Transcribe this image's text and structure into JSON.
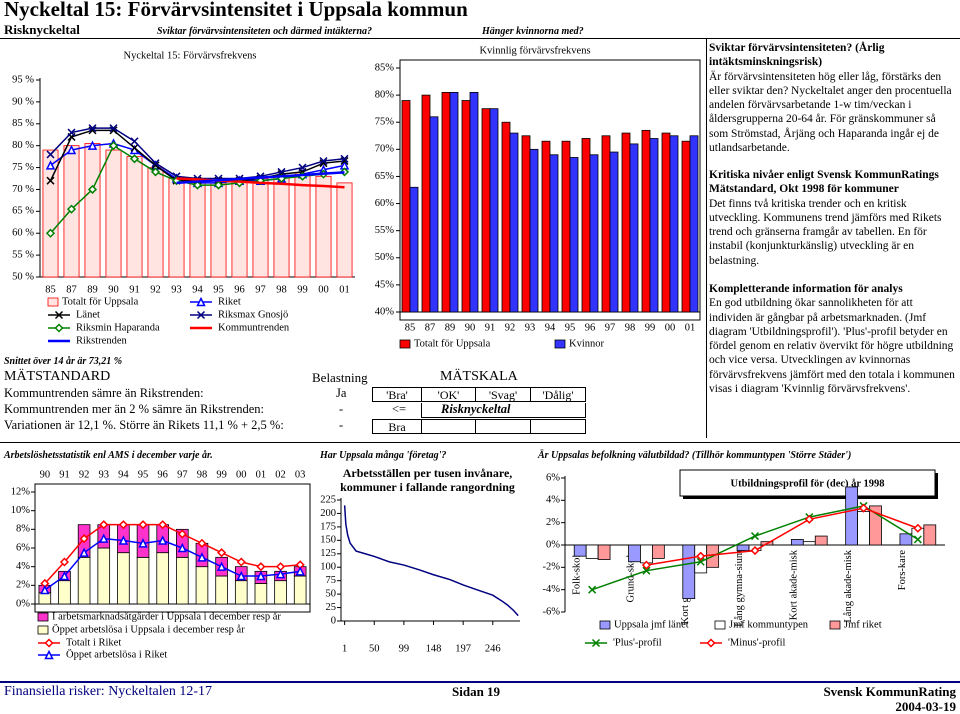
{
  "header": {
    "title": "Nyckeltal 15: Förvärvsintensitet i Uppsala kommun",
    "label": "Risknyckeltal",
    "questions": [
      "Sviktar förvärvsintensiteten och därmed intäkterna?",
      "Hänger kvinnorna med?"
    ]
  },
  "text": [
    {
      "heading": "Sviktar förvärvsintensiteten? (Årlig intäktsminskningsrisk)",
      "body": "Är förvärvsintensiteten hög eller låg, förstärks den eller sviktar den? Nyckeltalet anger den procentuella andelen förvärvsarbetande 1-w tim/veckan i åldersgrupperna 20-64 år. För gränskommuner så som Strömstad, Årjäng och Haparanda ingår ej de utlandsarbetande."
    },
    {
      "heading": "Kritiska nivåer enligt Svensk KommunRatings Mätstandard, Okt 1998 för kommuner",
      "body": "Det finns två kritiska trender och en kritisk utveckling. Kommunens trend jämförs med Rikets trend och gränserna framgår av tabellen. En för instabil (konjunkturkänslig) utveckling är en belastning."
    },
    {
      "heading": "Kompletterande information för analys",
      "body": "En god utbildning ökar sannolikheten för att individen är gångbar på arbetsmarknaden. (Jmf diagram 'Utbildningsprofil'). 'Plus'-profil betyder en fördel genom en relativ övervikt för högre utbildning och vice versa. Utvecklingen av kvinnornas förvärvsfrekvens jämfört med den totala i kommunen visas i diagram 'Kvinnlig förvärvsfrekvens'."
    }
  ],
  "table": {
    "note": "Snittet över 14 år är 73,21 %",
    "headers": [
      "MÄTSTANDARD",
      "Belastning",
      "MÄTSKALA"
    ],
    "rows": [
      [
        "Kommuntrenden sämre än Rikstrenden:",
        "Ja",
        "'Bra'",
        "'OK'",
        "'Svag'",
        "'Dålig'"
      ],
      [
        "Kommuntrenden mer än 2 % sämre än Rikstrenden:",
        "-",
        "<=",
        "Risknyckeltal"
      ],
      [
        "Variationen är 12,1 %. Större än Rikets 11,1 % + 2,5 %:",
        "-",
        "Bra"
      ]
    ]
  },
  "bottom_questions": [
    "Arbetslöshetsstatistik enl AMS i december varje år.",
    "Har Uppsala många 'företag'?",
    "Är Uppsalas befolkning välutbildad? (Tillhör kommuntypen 'Större Städer')"
  ],
  "footer": {
    "left": "Finansiella risker: Nyckeltalen 12-17",
    "page": "Sidan 19",
    "company": "Svensk KommunRating",
    "date": "2004-03-19"
  },
  "chart_data": [
    {
      "type": "bar",
      "title": "Nyckeltal 15: Förvärvsfrekvens",
      "categories": [
        "85",
        "87",
        "89",
        "90",
        "91",
        "92",
        "93",
        "94",
        "95",
        "96",
        "97",
        "98",
        "99",
        "00",
        "01"
      ],
      "ylim": [
        50,
        95
      ],
      "yticks": [
        {
          "value": 50,
          "label": "50 %"
        },
        {
          "value": 55,
          "label": "55 %"
        },
        {
          "value": 60,
          "label": "60 %"
        },
        {
          "value": 65,
          "label": "65 %"
        },
        {
          "value": 70,
          "label": "70 %"
        },
        {
          "value": 75,
          "label": "75 %"
        },
        {
          "value": 80,
          "label": "80 %"
        },
        {
          "value": 85,
          "label": "85 %"
        },
        {
          "value": 90,
          "label": "90 %"
        },
        {
          "value": 95,
          "label": "95 %"
        }
      ],
      "grid": false,
      "series": [
        {
          "name": "Totalt för Uppsala",
          "kind": "bar",
          "color": "#ff0000",
          "fill": "#ffe4e1",
          "values": [
            79,
            80,
            80.5,
            79,
            77.5,
            75,
            72.5,
            71.5,
            71.5,
            72,
            72.5,
            73,
            73.5,
            73,
            71.5
          ]
        },
        {
          "name": "Riket",
          "kind": "line",
          "marker": "triangle",
          "color": "#0000ff",
          "values": [
            75.5,
            79,
            80,
            80.5,
            79,
            75.5,
            72.5,
            71.5,
            71.5,
            72,
            72,
            72.5,
            73.5,
            74.5,
            75.5
          ]
        },
        {
          "name": "Länet",
          "kind": "line",
          "marker": "x",
          "color": "#000000",
          "values": [
            72,
            82,
            83.5,
            83.5,
            79.5,
            75.5,
            72,
            72,
            72,
            72,
            72.5,
            73.5,
            74,
            76,
            76.5
          ]
        },
        {
          "name": "Riksmax Gnosjö",
          "kind": "line",
          "marker": "x",
          "color": "#000080",
          "values": [
            78,
            83,
            84,
            84,
            81,
            76,
            73,
            72.5,
            72.5,
            72.5,
            73,
            74,
            75,
            76.5,
            77
          ]
        },
        {
          "name": "Riksmin Haparanda",
          "kind": "line",
          "marker": "diamond",
          "color": "#008000",
          "values": [
            60,
            65.5,
            70,
            80,
            77,
            74,
            72,
            71,
            71,
            71.5,
            72,
            72.5,
            73,
            73.5,
            74
          ]
        },
        {
          "name": "Kommuntrenden",
          "kind": "line",
          "width": 2.5,
          "color": "#ff0000",
          "values": [
            null,
            null,
            null,
            null,
            null,
            null,
            72.5,
            72.3,
            72,
            71.8,
            71.5,
            71.3,
            71,
            70.8,
            70.5
          ]
        },
        {
          "name": "Rikstrenden",
          "kind": "line",
          "width": 2.5,
          "color": "#0000ff",
          "values": [
            null,
            null,
            null,
            null,
            null,
            null,
            71.5,
            71.8,
            72.1,
            72.4,
            72.7,
            73,
            73.3,
            73.6,
            73.9
          ]
        }
      ]
    },
    {
      "type": "bar",
      "title": "Kvinnlig förvärvsfrekvens",
      "categories": [
        "85",
        "87",
        "89",
        "90",
        "91",
        "92",
        "93",
        "94",
        "95",
        "96",
        "97",
        "98",
        "99",
        "00",
        "01"
      ],
      "ylim": [
        40,
        85
      ],
      "yticks": [
        {
          "value": 40,
          "label": "40%"
        },
        {
          "value": 45,
          "label": "45%"
        },
        {
          "value": 50,
          "label": "50%"
        },
        {
          "value": 55,
          "label": "55%"
        },
        {
          "value": 60,
          "label": "60%"
        },
        {
          "value": 65,
          "label": "65%"
        },
        {
          "value": 70,
          "label": "70%"
        },
        {
          "value": 75,
          "label": "75%"
        },
        {
          "value": 80,
          "label": "80%"
        },
        {
          "value": 85,
          "label": "85%"
        }
      ],
      "grid": false,
      "series": [
        {
          "name": "Totalt för Uppsala",
          "kind": "bar",
          "color": "#000000",
          "fill": "#ff0000",
          "values": [
            79,
            80,
            80.5,
            79,
            77.5,
            75,
            72.5,
            71.5,
            71.5,
            72,
            72.5,
            73,
            73.5,
            73,
            71.5
          ]
        },
        {
          "name": "Kvinnor",
          "kind": "bar",
          "color": "#000000",
          "fill": "#3333ff",
          "values": [
            63,
            76,
            80.5,
            80.5,
            77.5,
            73,
            70,
            69,
            68.5,
            69,
            69.5,
            71,
            72,
            72.5,
            72.5
          ]
        }
      ]
    },
    {
      "type": "bar",
      "stacked": true,
      "categories": [
        "90",
        "91",
        "92",
        "93",
        "94",
        "95",
        "96",
        "97",
        "98",
        "99",
        "00",
        "01",
        "02",
        "03"
      ],
      "ylim": [
        0,
        12
      ],
      "yticks": [
        {
          "value": 0,
          "label": "0%"
        },
        {
          "value": 2,
          "label": "2%"
        },
        {
          "value": 4,
          "label": "4%"
        },
        {
          "value": 6,
          "label": "6%"
        },
        {
          "value": 8,
          "label": "8%"
        },
        {
          "value": 10,
          "label": "10%"
        },
        {
          "value": 12,
          "label": "12%"
        }
      ],
      "grid": false,
      "series": [
        {
          "name": "I arbetsmarknadsåtgärder i Uppsala i december resp år",
          "kind": "bar",
          "color": "#000000",
          "fill": "#ff33cc",
          "values": [
            0.8,
            1,
            3.5,
            2.5,
            3,
            3.5,
            3,
            3,
            2.5,
            2,
            1.5,
            1.3,
            1,
            1
          ]
        },
        {
          "name": "Öppet arbetslösa i Uppsala i december resp år",
          "kind": "bar",
          "color": "#000000",
          "fill": "#ffffcc",
          "values": [
            1.2,
            2.5,
            5,
            6,
            5.5,
            5,
            5.5,
            5,
            4,
            3,
            2.5,
            2.2,
            2.5,
            3
          ]
        },
        {
          "name": "Totalt i Riket",
          "kind": "line",
          "marker": "diamond",
          "color": "#ff0000",
          "values": [
            2.2,
            4.5,
            7,
            8.5,
            8.5,
            8.5,
            8.5,
            7.5,
            6.5,
            5.5,
            4.5,
            4,
            4,
            4.2
          ]
        },
        {
          "name": "Öppet arbetslösa i Riket",
          "kind": "line",
          "marker": "triangle",
          "color": "#0000ff",
          "values": [
            1.5,
            3,
            5.5,
            7,
            6.8,
            6.5,
            6.8,
            6,
            5,
            4,
            3,
            3,
            3.2,
            3.5
          ]
        }
      ]
    },
    {
      "type": "line",
      "title": "Arbetsställen per tusen invånare, kommuner i fallande rangordning",
      "x": [
        1,
        3,
        6,
        10,
        20,
        35,
        50,
        75,
        99,
        125,
        148,
        175,
        197,
        220,
        246,
        260,
        270,
        280,
        288
      ],
      "xlim": [
        -5,
        291
      ],
      "xticks": [
        1,
        50,
        99,
        148,
        197,
        246
      ],
      "ylim": [
        0,
        225
      ],
      "yticks": [
        0,
        25,
        50,
        75,
        100,
        125,
        150,
        175,
        200,
        225
      ],
      "series": [
        {
          "color": "#000080",
          "values": [
            215,
            180,
            160,
            145,
            130,
            125,
            120,
            110,
            104,
            95,
            86,
            77,
            67,
            58,
            48,
            38,
            30,
            20,
            10
          ]
        }
      ]
    },
    {
      "type": "bar",
      "title": "Utbildningsprofil för (dec) år 1998",
      "categories": [
        "Folk-skola",
        "Grund-skola",
        "Kort gymna-sium",
        "Lång gymna-sium",
        "Kort akade-misk",
        "Lång akade-misk",
        "Fors-kare"
      ],
      "ylim": [
        -6,
        6
      ],
      "yticks": [
        {
          "value": -6,
          "label": "-6%"
        },
        {
          "value": -4,
          "label": "-4%"
        },
        {
          "value": -2,
          "label": "-2%"
        },
        {
          "value": 0,
          "label": "0%"
        },
        {
          "value": 2,
          "label": "2%"
        },
        {
          "value": 4,
          "label": "4%"
        },
        {
          "value": 6,
          "label": "6%"
        }
      ],
      "zero_line": true,
      "series": [
        {
          "name": "Uppsala jmf länet",
          "kind": "bar",
          "color": "#000000",
          "fill": "#9999ff",
          "values": [
            -1,
            -1.5,
            -4.8,
            -0.5,
            0.5,
            5.2,
            1
          ]
        },
        {
          "name": "Jmf kommuntypen",
          "kind": "bar",
          "color": "#000000",
          "fill": "#ffffff",
          "values": [
            -1.2,
            -1.6,
            -2.5,
            -0.5,
            0.3,
            3,
            1.5
          ]
        },
        {
          "name": "Jmf riket",
          "kind": "bar",
          "color": "#000000",
          "fill": "#ff9999",
          "values": [
            -1.3,
            -1.2,
            -2,
            0.3,
            0.8,
            3.5,
            1.8
          ]
        },
        {
          "name": "'Plus'-profil",
          "kind": "line",
          "marker": "x",
          "color": "#008000",
          "values": [
            -4,
            -2.3,
            -1.5,
            0.8,
            2.5,
            3.5,
            0.5
          ]
        },
        {
          "name": "'Minus'-profil",
          "kind": "line",
          "marker": "diamond",
          "color": "#ff0000",
          "values": [
            null,
            -1.8,
            -1,
            -0.5,
            2.3,
            3.3,
            1.5
          ]
        }
      ]
    }
  ]
}
